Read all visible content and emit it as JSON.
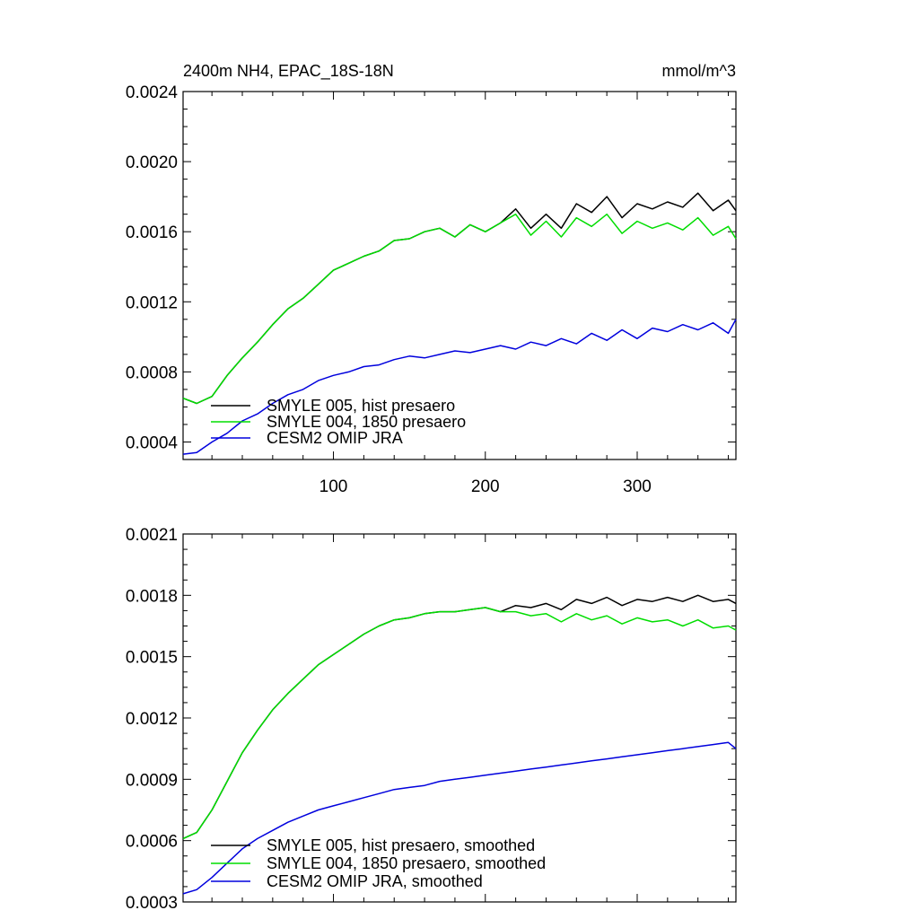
{
  "colors": {
    "black": "#000000",
    "green": "#00dd00",
    "blue": "#0000dd"
  },
  "chart_data": [
    {
      "type": "line",
      "title": "2400m NH4, EPAC_18S-18N",
      "units": "mmol/m^3",
      "xlim": [
        1,
        365
      ],
      "ylim": [
        0.0003,
        0.0024
      ],
      "xticks": [
        100,
        200,
        300
      ],
      "xtick_labels": [
        "100",
        "200",
        "300"
      ],
      "yticks": [
        0.0004,
        0.0008,
        0.0012,
        0.0016,
        0.002,
        0.0024
      ],
      "ytick_labels": [
        "0.0004",
        "0.0008",
        "0.0012",
        "0.0016",
        "0.0020",
        "0.0024"
      ],
      "legend_position": "lower-left",
      "series": [
        {
          "name": "SMYLE 005, hist presaero",
          "color": "#000000",
          "x": [
            1,
            10,
            20,
            30,
            40,
            50,
            60,
            70,
            80,
            90,
            100,
            110,
            120,
            130,
            140,
            150,
            160,
            170,
            180,
            190,
            200,
            210,
            220,
            230,
            240,
            250,
            260,
            270,
            280,
            290,
            300,
            310,
            320,
            330,
            340,
            350,
            360,
            365
          ],
          "values": [
            0.00065,
            0.00062,
            0.00066,
            0.00078,
            0.00088,
            0.00097,
            0.00107,
            0.00116,
            0.00122,
            0.0013,
            0.00138,
            0.00142,
            0.00146,
            0.00149,
            0.00155,
            0.00156,
            0.0016,
            0.00162,
            0.00157,
            0.00164,
            0.0016,
            0.00165,
            0.00173,
            0.00162,
            0.0017,
            0.00162,
            0.00176,
            0.00171,
            0.0018,
            0.00168,
            0.00176,
            0.00173,
            0.00177,
            0.00174,
            0.00182,
            0.00172,
            0.00178,
            0.00172
          ]
        },
        {
          "name": "SMYLE 004, 1850 presaero",
          "color": "#00dd00",
          "x": [
            1,
            10,
            20,
            30,
            40,
            50,
            60,
            70,
            80,
            90,
            100,
            110,
            120,
            130,
            140,
            150,
            160,
            170,
            180,
            190,
            200,
            210,
            220,
            230,
            240,
            250,
            260,
            270,
            280,
            290,
            300,
            310,
            320,
            330,
            340,
            350,
            360,
            365
          ],
          "values": [
            0.00065,
            0.00062,
            0.00066,
            0.00078,
            0.00088,
            0.00097,
            0.00107,
            0.00116,
            0.00122,
            0.0013,
            0.00138,
            0.00142,
            0.00146,
            0.00149,
            0.00155,
            0.00156,
            0.0016,
            0.00162,
            0.00157,
            0.00164,
            0.0016,
            0.00165,
            0.0017,
            0.00158,
            0.00166,
            0.00157,
            0.00168,
            0.00163,
            0.0017,
            0.00159,
            0.00166,
            0.00162,
            0.00165,
            0.00161,
            0.00168,
            0.00158,
            0.00163,
            0.00156
          ]
        },
        {
          "name": "CESM2 OMIP JRA",
          "color": "#0000dd",
          "x": [
            1,
            10,
            20,
            30,
            40,
            50,
            60,
            70,
            80,
            90,
            100,
            110,
            120,
            130,
            140,
            150,
            160,
            170,
            180,
            190,
            200,
            210,
            220,
            230,
            240,
            250,
            260,
            270,
            280,
            290,
            300,
            310,
            320,
            330,
            340,
            350,
            360,
            365
          ],
          "values": [
            0.00033,
            0.00034,
            0.0004,
            0.00045,
            0.00052,
            0.00056,
            0.00062,
            0.00067,
            0.0007,
            0.00075,
            0.00078,
            0.0008,
            0.00083,
            0.00084,
            0.00087,
            0.00089,
            0.00088,
            0.0009,
            0.00092,
            0.00091,
            0.00093,
            0.00095,
            0.00093,
            0.00097,
            0.00095,
            0.00099,
            0.00096,
            0.00102,
            0.00098,
            0.00104,
            0.00099,
            0.00105,
            0.00103,
            0.00107,
            0.00104,
            0.00108,
            0.00102,
            0.0011
          ]
        }
      ]
    },
    {
      "type": "line",
      "title": "",
      "xlim": [
        1,
        365
      ],
      "ylim": [
        0.0003,
        0.0021
      ],
      "xticks": [
        100,
        200,
        300
      ],
      "yticks": [
        0.0003,
        0.0006,
        0.0009,
        0.0012,
        0.0015,
        0.0018,
        0.0021
      ],
      "ytick_labels": [
        "0.0003",
        "0.0006",
        "0.0009",
        "0.0012",
        "0.0015",
        "0.0018",
        "0.0021"
      ],
      "legend_position": "lower-left",
      "series": [
        {
          "name": "SMYLE 005, hist presaero, smoothed",
          "color": "#000000",
          "x": [
            1,
            10,
            20,
            30,
            40,
            50,
            60,
            70,
            80,
            90,
            100,
            110,
            120,
            130,
            140,
            150,
            160,
            170,
            180,
            190,
            200,
            210,
            220,
            230,
            240,
            250,
            260,
            270,
            280,
            290,
            300,
            310,
            320,
            330,
            340,
            350,
            360,
            365
          ],
          "values": [
            0.00061,
            0.00064,
            0.00075,
            0.00089,
            0.00103,
            0.00114,
            0.00124,
            0.00132,
            0.00139,
            0.00146,
            0.00151,
            0.00156,
            0.00161,
            0.00165,
            0.00168,
            0.00169,
            0.00171,
            0.00172,
            0.00172,
            0.00173,
            0.00174,
            0.00172,
            0.00175,
            0.00174,
            0.00176,
            0.00173,
            0.00178,
            0.00176,
            0.00179,
            0.00175,
            0.00178,
            0.00177,
            0.00179,
            0.00177,
            0.0018,
            0.00177,
            0.00178,
            0.00176
          ]
        },
        {
          "name": "SMYLE 004, 1850 presaero, smoothed",
          "color": "#00dd00",
          "x": [
            1,
            10,
            20,
            30,
            40,
            50,
            60,
            70,
            80,
            90,
            100,
            110,
            120,
            130,
            140,
            150,
            160,
            170,
            180,
            190,
            200,
            210,
            220,
            230,
            240,
            250,
            260,
            270,
            280,
            290,
            300,
            310,
            320,
            330,
            340,
            350,
            360,
            365
          ],
          "values": [
            0.00061,
            0.00064,
            0.00075,
            0.00089,
            0.00103,
            0.00114,
            0.00124,
            0.00132,
            0.00139,
            0.00146,
            0.00151,
            0.00156,
            0.00161,
            0.00165,
            0.00168,
            0.00169,
            0.00171,
            0.00172,
            0.00172,
            0.00173,
            0.00174,
            0.00172,
            0.00172,
            0.0017,
            0.00171,
            0.00167,
            0.00171,
            0.00168,
            0.0017,
            0.00166,
            0.00169,
            0.00167,
            0.00168,
            0.00165,
            0.00168,
            0.00164,
            0.00165,
            0.00163
          ]
        },
        {
          "name": "CESM2 OMIP JRA, smoothed",
          "color": "#0000dd",
          "x": [
            1,
            10,
            20,
            30,
            40,
            50,
            60,
            70,
            80,
            90,
            100,
            110,
            120,
            130,
            140,
            150,
            160,
            170,
            180,
            190,
            200,
            210,
            220,
            230,
            240,
            250,
            260,
            270,
            280,
            290,
            300,
            310,
            320,
            330,
            340,
            350,
            360,
            365
          ],
          "values": [
            0.00034,
            0.00036,
            0.00042,
            0.00049,
            0.00056,
            0.00061,
            0.00065,
            0.00069,
            0.00072,
            0.00075,
            0.00077,
            0.00079,
            0.00081,
            0.00083,
            0.00085,
            0.00086,
            0.00087,
            0.00089,
            0.0009,
            0.00091,
            0.00092,
            0.00093,
            0.00094,
            0.00095,
            0.00096,
            0.00097,
            0.00098,
            0.00099,
            0.001,
            0.00101,
            0.00102,
            0.00103,
            0.00104,
            0.00105,
            0.00106,
            0.00107,
            0.00108,
            0.00105
          ]
        }
      ]
    }
  ]
}
